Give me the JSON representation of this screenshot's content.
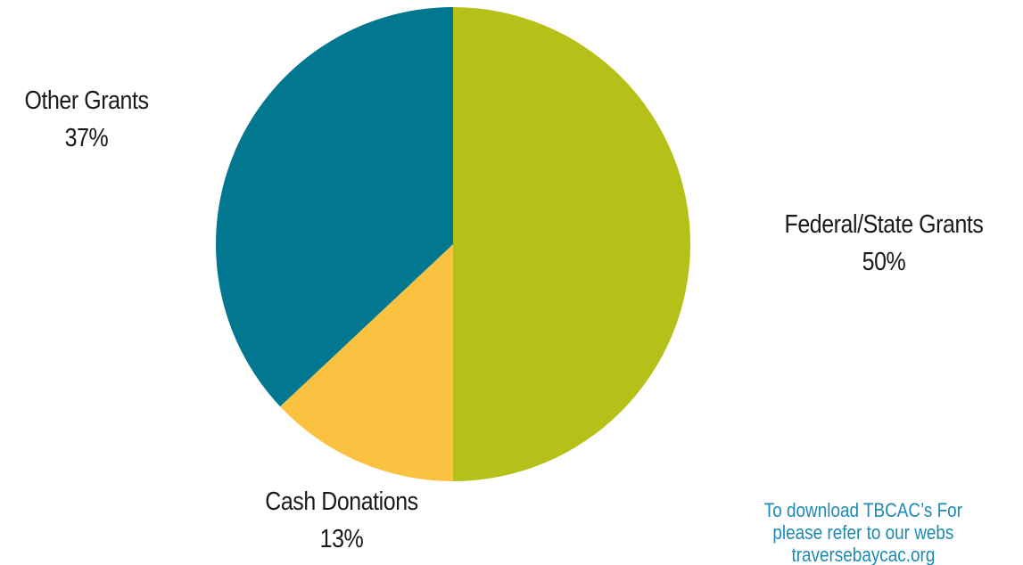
{
  "colors": {
    "federal_state_grants": "#b5c018",
    "cash_donations": "#fbc141",
    "other_grants": "#017890",
    "footer_text": "#1c8ab3"
  },
  "chart_data": {
    "type": "pie",
    "title": "",
    "start_angle_deg": 0,
    "direction": "clockwise",
    "slices": [
      {
        "name": "Federal/State Grants",
        "value": 50,
        "label": "50%",
        "color": "#b5c018"
      },
      {
        "name": "Cash Donations",
        "value": 13,
        "label": "13%",
        "color": "#fbc141"
      },
      {
        "name": "Other Grants",
        "value": 37,
        "label": "37%",
        "color": "#017890"
      }
    ],
    "legend": "none"
  },
  "footer": {
    "line1": "To download TBCAC’s For",
    "line2": "please refer to our webs",
    "line3": "traversebaycac.org"
  }
}
